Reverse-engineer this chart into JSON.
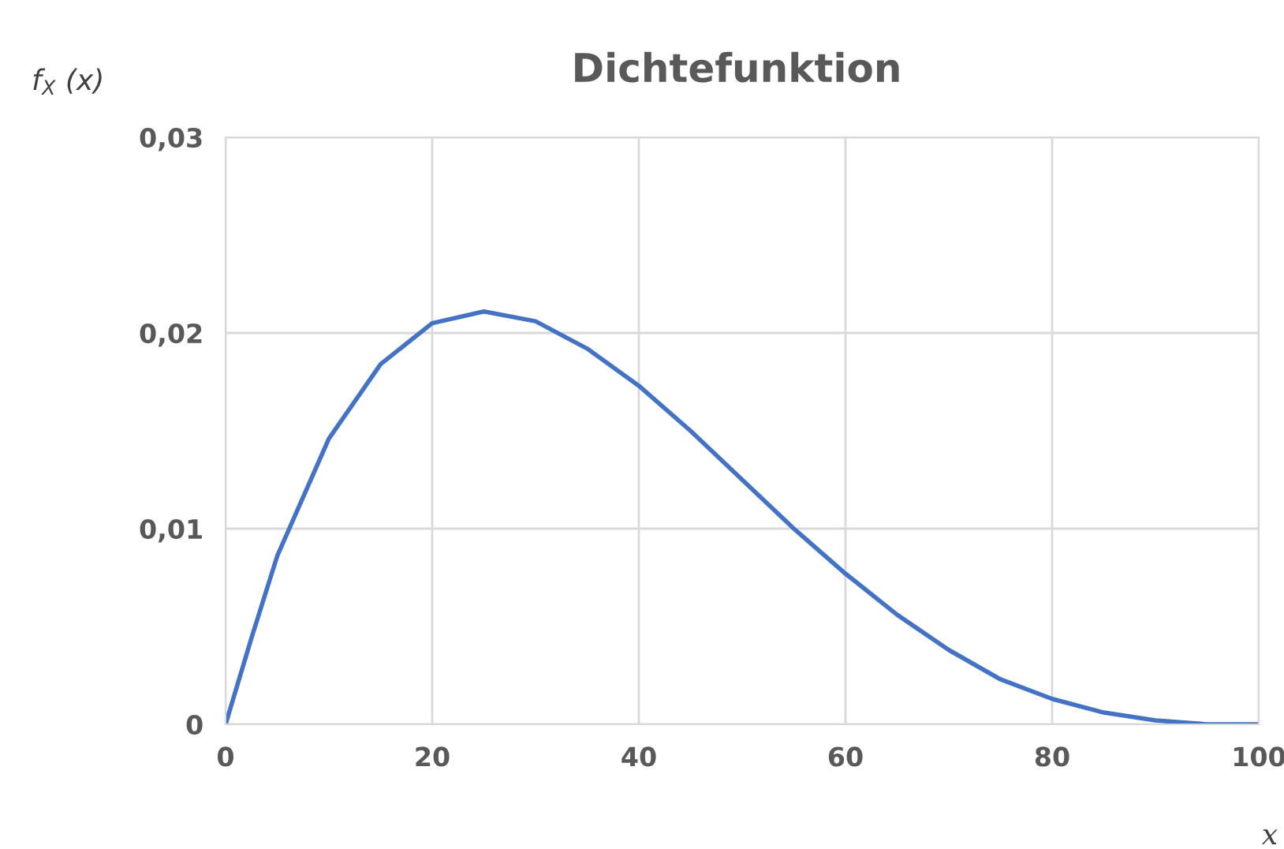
{
  "chart_data": {
    "type": "line",
    "title": "Dichtefunktion",
    "xlabel": "x",
    "ylabel": "f$_{X}$ (x)",
    "x": [
      0,
      2.5,
      5,
      10,
      15,
      20,
      25,
      30,
      35,
      40,
      45,
      50,
      55,
      60,
      65,
      70,
      75,
      80,
      85,
      90,
      95,
      100
    ],
    "series": [
      {
        "color": "#4472c4",
        "values": [
          0,
          0.0044,
          0.0086,
          0.0146,
          0.0184,
          0.0205,
          0.0211,
          0.0206,
          0.0192,
          0.0173,
          0.015,
          0.0125,
          0.01,
          0.0077,
          0.0056,
          0.0038,
          0.0023,
          0.0013,
          0.0006,
          0.0002,
          0.0,
          0
        ]
      }
    ],
    "xlim": [
      0,
      100
    ],
    "ylim": [
      0,
      0.03
    ],
    "xticks": [
      0,
      20,
      40,
      60,
      80,
      100
    ],
    "yticks": [
      0,
      {
        "value": 0.01,
        "label": "0,01"
      },
      {
        "value": 0.02,
        "label": "0,02"
      },
      {
        "value": 0.03,
        "label": "0,03"
      }
    ],
    "grid": true,
    "marker": "none",
    "line_style": "solid"
  }
}
